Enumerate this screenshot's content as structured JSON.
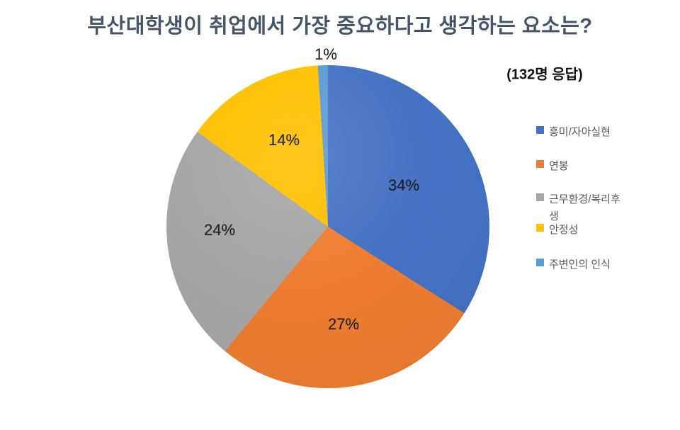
{
  "chart": {
    "title": "부산대학생이 취업에서 가장 중요하다고 생각하는 요소는?",
    "respondents_note": "(132명 응답)"
  },
  "chart_data": {
    "type": "pie",
    "title": "부산대학생이 취업에서 가장 중요하다고 생각하는 요소는?",
    "annotation": "(132명 응답)",
    "respondents": 132,
    "categories": [
      "흥미/자아실현",
      "연봉",
      "근무환경/복리후생",
      "안정성",
      "주변인의 인식"
    ],
    "values": [
      34,
      27,
      24,
      14,
      1
    ],
    "unit": "percent",
    "percent_labels": [
      "34%",
      "27%",
      "24%",
      "14%",
      "1%"
    ],
    "colors": [
      "#4472C4",
      "#ED7D31",
      "#A5A5A5",
      "#FFC000",
      "#5B9BD5"
    ],
    "start_angle_deg": 0,
    "direction": "clockwise",
    "legend_position": "right",
    "data_labels": "percent, inside slices (1% outside at top)"
  },
  "colors": {
    "background": "#FFFFFF",
    "title_text": "#44546A",
    "legend_text": "#595959",
    "data_label_text": "#1F1F1F"
  }
}
